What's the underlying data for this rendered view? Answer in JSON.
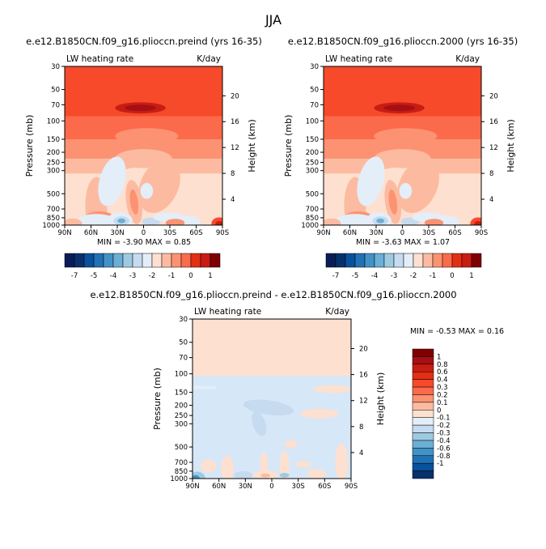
{
  "figure": {
    "title": "JJA"
  },
  "common": {
    "variable": "LW heating rate",
    "units": "K/day",
    "ylabel": "Pressure (mb)",
    "right_label": "Height (km)",
    "x_ticks": [
      "90N",
      "60N",
      "30N",
      "0",
      "30S",
      "60S",
      "90S"
    ],
    "p_ticks": [
      "30",
      "50",
      "70",
      "100",
      "150",
      "200",
      "250",
      "300",
      "500",
      "700",
      "850",
      "1000"
    ],
    "h_ticks": [
      "20",
      "16",
      "12",
      "8",
      "4"
    ]
  },
  "colors": {
    "warm": [
      "#fde0d0",
      "#fcbba1",
      "#fc9272",
      "#fb6a4a",
      "#f64a2a",
      "#e32f13",
      "#c81d12",
      "#a50f15",
      "#7f0000"
    ],
    "cool": [
      "#e3eef9",
      "#c6dbef",
      "#9ecae1",
      "#6baed6",
      "#4292c6",
      "#2171b5",
      "#08519c",
      "#08306b",
      "#081d58"
    ]
  },
  "chart_data": [
    {
      "type": "heatmap",
      "title": "e.e12.B1850CN.f09_g16.plioccn.preind (yrs 16-35)",
      "variable": "LW heating rate",
      "units": "K/day",
      "xlabel": "",
      "ylabel": "Pressure (mb)",
      "y2label": "Height (km)",
      "xlim": [
        "90N",
        "90S"
      ],
      "ylim": [
        1000,
        30
      ],
      "y_scale": "log",
      "min": -3.9,
      "max": 0.85,
      "stats_text": "MIN =  -3.90   MAX =   0.85",
      "colorbar_labels": [
        "-7",
        "-5",
        "-4",
        "-3",
        "-2",
        "-1",
        "0",
        "1"
      ],
      "colorbar_levels": [
        -7,
        -6,
        -5,
        -4.5,
        -4,
        -3.5,
        -3,
        -2.5,
        -2,
        -1.5,
        -1,
        -0.5,
        0,
        0.5,
        1
      ]
    },
    {
      "type": "heatmap",
      "title": "e.e12.B1850CN.f09_g16.plioccn.2000 (yrs 16-35)",
      "variable": "LW heating rate",
      "units": "K/day",
      "xlabel": "",
      "ylabel": "Pressure (mb)",
      "y2label": "Height (km)",
      "xlim": [
        "90N",
        "90S"
      ],
      "ylim": [
        1000,
        30
      ],
      "y_scale": "log",
      "min": -3.63,
      "max": 1.07,
      "stats_text": "MIN =  -3.63   MAX =   1.07",
      "colorbar_labels": [
        "-7",
        "-5",
        "-4",
        "-3",
        "-2",
        "-1",
        "0",
        "1"
      ],
      "colorbar_levels": [
        -7,
        -6,
        -5,
        -4.5,
        -4,
        -3.5,
        -3,
        -2.5,
        -2,
        -1.5,
        -1,
        -0.5,
        0,
        0.5,
        1
      ]
    },
    {
      "type": "heatmap",
      "title": "e.e12.B1850CN.f09_g16.plioccn.preind - e.e12.B1850CN.f09_g16.plioccn.2000",
      "variable": "LW heating rate",
      "units": "K/day",
      "xlabel": "",
      "ylabel": "Pressure (mb)",
      "y2label": "Height (km)",
      "xlim": [
        "90N",
        "90S"
      ],
      "ylim": [
        1000,
        30
      ],
      "y_scale": "log",
      "min": -0.53,
      "max": 0.16,
      "stats_text": "MIN =  -0.53   MAX =   0.16",
      "colorbar_labels": [
        "1",
        "0.8",
        "0.6",
        "0.4",
        "0.3",
        "0.2",
        "0.1",
        "0",
        "-0.1",
        "-0.2",
        "-0.3",
        "-0.4",
        "-0.6",
        "-0.8",
        "-1"
      ]
    }
  ]
}
